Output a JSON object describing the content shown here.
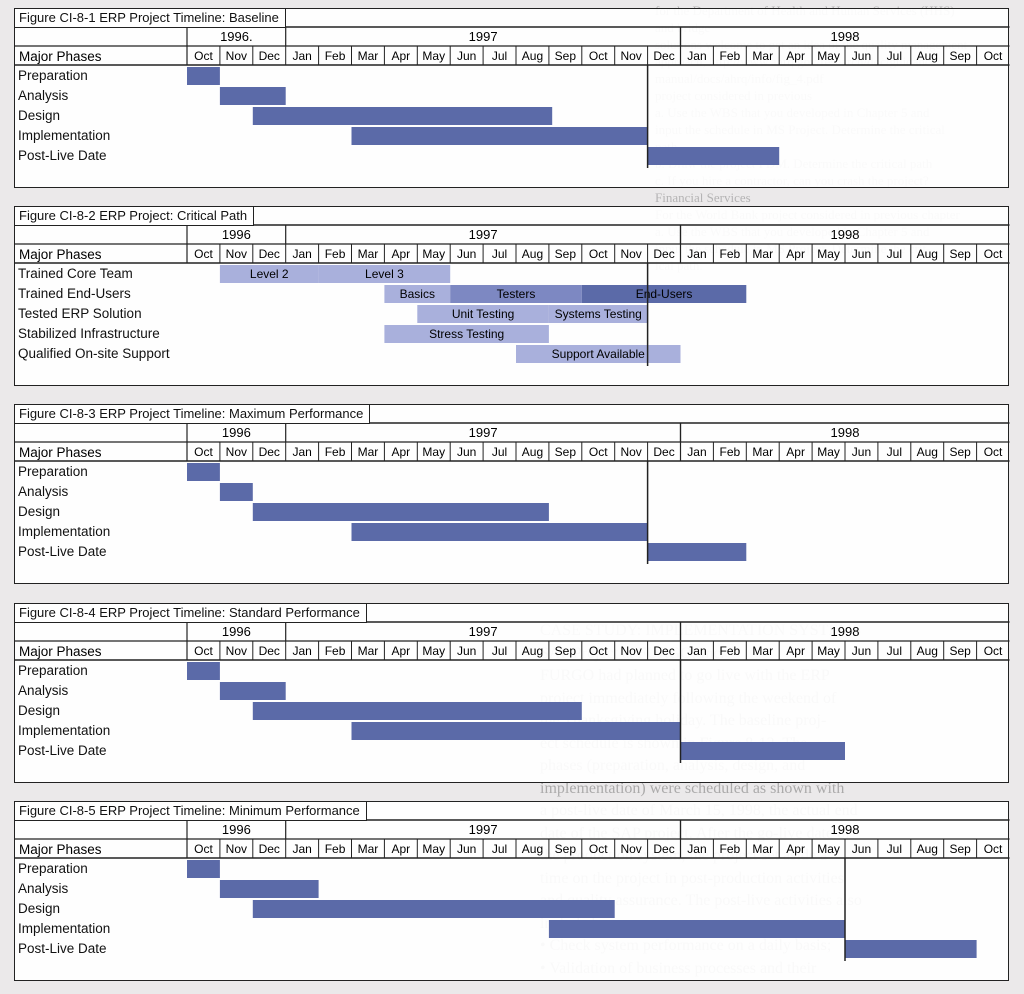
{
  "colors": {
    "bar_dark": "#5b6aa8",
    "bar_mid": "#7d88c2",
    "bar_light": "#a9b0dc",
    "border": "#222222"
  },
  "timeline": {
    "years": [
      "1996",
      "1997",
      "1998"
    ],
    "months": [
      "Oct",
      "Nov",
      "Dec",
      "Jan",
      "Feb",
      "Mar",
      "Apr",
      "May",
      "Jun",
      "Jul",
      "Aug",
      "Sep",
      "Oct",
      "Nov",
      "Dec",
      "Jan",
      "Feb",
      "Mar",
      "Apr",
      "May",
      "Jun",
      "Jul",
      "Aug",
      "Sep",
      "Oct"
    ],
    "header_label": "Major Phases"
  },
  "figures": [
    {
      "title": "Figure CI-8-1 ERP Project Timeline: Baseline",
      "year_labels": [
        "1996.",
        "1997",
        "1998"
      ],
      "rows": [
        "Preparation",
        "Analysis",
        "Design",
        "Implementation",
        "Post-Live Date"
      ],
      "bars": [
        {
          "row": 0,
          "start": 0.0,
          "end": 1.0
        },
        {
          "row": 1,
          "start": 1.0,
          "end": 3.0
        },
        {
          "row": 2,
          "start": 2.0,
          "end": 11.1
        },
        {
          "row": 3,
          "start": 5.0,
          "end": 14.0
        },
        {
          "row": 4,
          "start": 14.0,
          "end": 18.0
        }
      ],
      "divider_after_month": 13
    },
    {
      "title": "Figure CI-8-2 ERP Project: Critical Path",
      "year_labels": [
        "1996",
        "1997",
        "1998"
      ],
      "rows": [
        "Trained Core Team",
        "Trained End-Users",
        "Tested ERP Solution",
        "Stabilized Infrastructure",
        "Qualified On-site Support"
      ],
      "bars": [
        {
          "row": 0,
          "start": 1.0,
          "end": 4.0,
          "label": "Level 2",
          "shade": "light"
        },
        {
          "row": 0,
          "start": 4.0,
          "end": 8.0,
          "label": "Level 3",
          "shade": "light"
        },
        {
          "row": 1,
          "start": 6.0,
          "end": 8.0,
          "label": "Basics",
          "shade": "light"
        },
        {
          "row": 1,
          "start": 8.0,
          "end": 12.0,
          "label": "Testers",
          "shade": "mid"
        },
        {
          "row": 1,
          "start": 12.0,
          "end": 17.0,
          "label": "End-Users",
          "shade": "dark"
        },
        {
          "row": 2,
          "start": 7.0,
          "end": 11.0,
          "label": "Unit Testing",
          "shade": "light"
        },
        {
          "row": 2,
          "start": 11.0,
          "end": 14.0,
          "label": "Systems Testing",
          "shade": "light"
        },
        {
          "row": 3,
          "start": 6.0,
          "end": 11.0,
          "label": "Stress Testing",
          "shade": "light"
        },
        {
          "row": 4,
          "start": 10.0,
          "end": 15.0,
          "label": "Support Available",
          "shade": "light"
        }
      ],
      "divider_after_month": 13
    },
    {
      "title": "Figure CI-8-3  ERP Project Timeline: Maximum Performance",
      "year_labels": [
        "1996",
        "1997",
        "1998"
      ],
      "rows": [
        "Preparation",
        "Analysis",
        "Design",
        "Implementation",
        "Post-Live Date"
      ],
      "bars": [
        {
          "row": 0,
          "start": 0.0,
          "end": 1.0
        },
        {
          "row": 1,
          "start": 1.0,
          "end": 2.0
        },
        {
          "row": 2,
          "start": 2.0,
          "end": 11.0
        },
        {
          "row": 3,
          "start": 5.0,
          "end": 14.0
        },
        {
          "row": 4,
          "start": 14.0,
          "end": 17.0
        }
      ],
      "divider_after_month": 13
    },
    {
      "title": "Figure CI-8-4 ERP Project Timeline: Standard Performance",
      "year_labels": [
        "1996",
        "1997",
        "1998"
      ],
      "rows": [
        "Preparation",
        "Analysis",
        "Design",
        "Implementation",
        "Post-Live Date"
      ],
      "bars": [
        {
          "row": 0,
          "start": 0.0,
          "end": 1.0
        },
        {
          "row": 1,
          "start": 1.0,
          "end": 3.0
        },
        {
          "row": 2,
          "start": 2.0,
          "end": 12.0
        },
        {
          "row": 3,
          "start": 5.0,
          "end": 15.0
        },
        {
          "row": 4,
          "start": 15.0,
          "end": 20.0
        }
      ],
      "divider_after_month": 14
    },
    {
      "title": "Figure CI-8-5 ERP Project Timeline: Minimum Performance",
      "year_labels": [
        "1996",
        "1997",
        "1998"
      ],
      "rows": [
        "Preparation",
        "Analysis",
        "Design",
        "Implementation",
        "Post-Live Date"
      ],
      "bars": [
        {
          "row": 0,
          "start": 0.0,
          "end": 1.0
        },
        {
          "row": 1,
          "start": 1.0,
          "end": 4.0
        },
        {
          "row": 2,
          "start": 2.0,
          "end": 13.0
        },
        {
          "row": 3,
          "start": 11.0,
          "end": 20.0
        },
        {
          "row": 4,
          "start": 20.0,
          "end": 24.0
        }
      ],
      "divider_after_month": 19
    }
  ],
  "background_text_top": [
    "for the Department of Health and Human Services (HHS)",
    "and bridge",
    "solutions welcome to get an idea of the quality management",
    "approach, http://www.ahrq.gov/research/doc/guidance/",
    "manual/docs/ahrq/info/fig_4.pdf",
    "",
    "project considered in previous",
    "a. Use the WBS that you developed in Chapter 5 and",
    "input the schedule in MS Project. Determine the critical",
    "path.",
    "b. Draw the project PDM. Determine the critical path",
    "c. If you hire a contractor, can you crash the project?",
    "Financial Services",
    "For the World Bank project considered in previous chapter",
    "",
    "a. Use the WBS that you developed in Chapter 5 and",
    "input the schedule in MS Project. Determine the crit-",
    "ical path."
  ],
  "background_text_bottom": [
    "CASE STUDY: IMPLEMENTATION SYSTEMS",
    "SAP Project at FURGO, Inc.",
    "FURGO had planned to go live with the ERP",
    "project immediately following the weekend of",
    "the Thanksgiving holiday. The baseline proj-",
    "ect schedule is shown in Figure 8-12. The",
    "phases (preparation, analysis, design, and",
    "implementation) were scheduled as shown with",
    "a post-live date of March 15, 1998, the actual end",
    "date of the SAP project. After the go-live date of",
    "the production system, the project set aside a",
    "time on the project in post-production activities",
    "and quality assurance. The post-live activities also",
    "included:",
    "• Check system performance on a daily basis;",
    "• Validation of business processes and their"
  ]
}
